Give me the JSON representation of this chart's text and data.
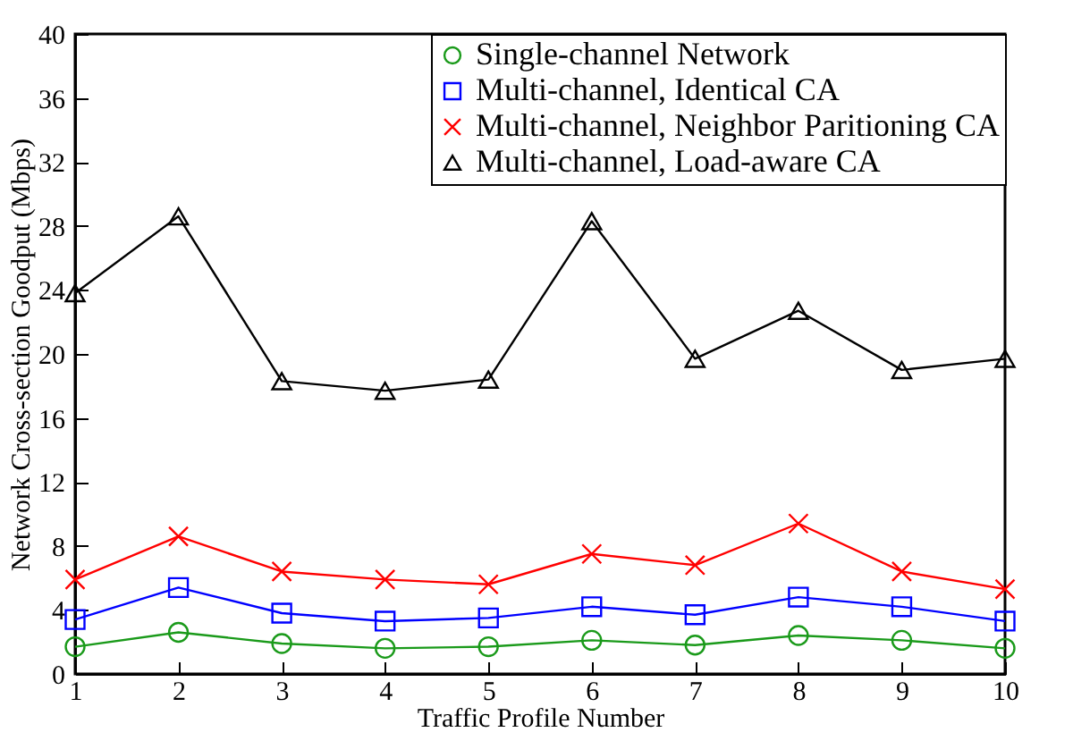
{
  "chart_data": {
    "type": "line",
    "xlabel": "Traffic Profile Number",
    "ylabel": "Network Cross-section Goodput (Mbps)",
    "x": [
      1,
      2,
      3,
      4,
      5,
      6,
      7,
      8,
      9,
      10
    ],
    "xlim": [
      1,
      10
    ],
    "xticks": [
      1,
      2,
      3,
      4,
      5,
      6,
      7,
      8,
      9,
      10
    ],
    "ylim": [
      0,
      40
    ],
    "yticks": [
      0,
      4,
      8,
      12,
      16,
      20,
      24,
      28,
      32,
      36,
      40
    ],
    "grid": false,
    "legend": "top right",
    "line_style": "solid",
    "series": [
      {
        "name": "Single-channel Network",
        "color": "#1a9a1a",
        "marker": "circle",
        "values": [
          1.7,
          2.6,
          1.9,
          1.6,
          1.7,
          2.1,
          1.8,
          2.4,
          2.1,
          1.6
        ]
      },
      {
        "name": "Multi-channel, Identical CA",
        "color": "#0000ff",
        "marker": "square",
        "values": [
          3.4,
          5.4,
          3.8,
          3.3,
          3.5,
          4.2,
          3.7,
          4.8,
          4.2,
          3.3
        ]
      },
      {
        "name": "Multi-channel, Neighbor Paritioning CA",
        "color": "#ff0000",
        "marker": "cross",
        "values": [
          5.9,
          8.6,
          6.4,
          5.9,
          5.6,
          7.5,
          6.8,
          9.4,
          6.4,
          5.3
        ]
      },
      {
        "name": "Multi-channel, Load-aware CA",
        "color": "#000000",
        "marker": "triangle",
        "values": [
          23.8,
          28.6,
          18.3,
          17.7,
          18.4,
          28.3,
          19.7,
          22.7,
          19.0,
          19.7
        ]
      }
    ]
  }
}
